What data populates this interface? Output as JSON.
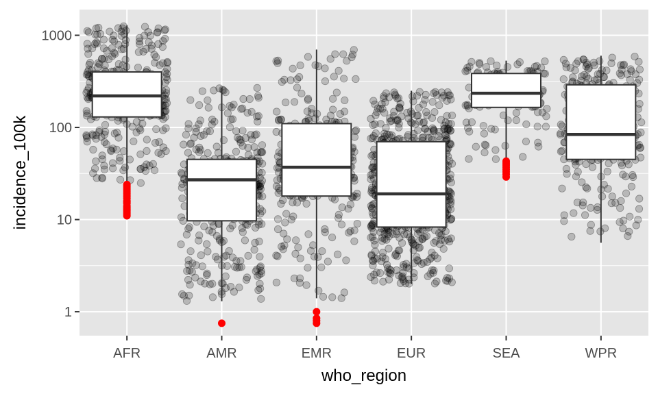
{
  "chart_data": {
    "type": "box",
    "xlabel": "who_region",
    "ylabel": "incidence_100k",
    "y_scale": "log10",
    "ylim": [
      0.55,
      1900
    ],
    "y_ticks": [
      1,
      10,
      100,
      1000
    ],
    "y_tick_labels": [
      "1",
      "10",
      "100",
      "1000"
    ],
    "categories": [
      "AFR",
      "AMR",
      "EMR",
      "EUR",
      "SEA",
      "WPR"
    ],
    "boxes": [
      {
        "category": "AFR",
        "q1": 130,
        "median": 220,
        "q3": 400,
        "whisker_low": 24,
        "whisker_high": 1280
      },
      {
        "category": "AMR",
        "q1": 9.7,
        "median": 27,
        "q3": 45,
        "whisker_low": 1.3,
        "whisker_high": 270
      },
      {
        "category": "EMR",
        "q1": 18,
        "median": 37,
        "q3": 110,
        "whisker_low": 1.4,
        "whisker_high": 700
      },
      {
        "category": "EUR",
        "q1": 8.3,
        "median": 19,
        "q3": 70,
        "whisker_low": 2.0,
        "whisker_high": 250
      },
      {
        "category": "SEA",
        "q1": 165,
        "median": 235,
        "q3": 385,
        "whisker_low": 45,
        "whisker_high": 530
      },
      {
        "category": "WPR",
        "q1": 45,
        "median": 84,
        "q3": 290,
        "whisker_low": 5.6,
        "whisker_high": 600
      }
    ],
    "outliers": [
      {
        "category": "AFR",
        "values": [
          11,
          11.5,
          12,
          12.5,
          13,
          13.5,
          14,
          15,
          15.5,
          16,
          17,
          18,
          19,
          20,
          21,
          22,
          23,
          24
        ]
      },
      {
        "category": "AMR",
        "values": [
          0.75
        ]
      },
      {
        "category": "EMR",
        "values": [
          0.75,
          0.8,
          0.85,
          1.0
        ]
      },
      {
        "category": "EUR",
        "values": []
      },
      {
        "category": "SEA",
        "values": [
          29,
          31,
          33,
          35,
          37,
          39,
          41,
          43
        ]
      },
      {
        "category": "WPR",
        "values": []
      }
    ],
    "jitter_points_per_category": [
      420,
      420,
      300,
      700,
      150,
      300
    ],
    "outlier_color": "#ff0000",
    "jitter_color": "#000000",
    "jitter_opacity": 0.2,
    "panel_background": "#e5e5e5",
    "grid_color": "#ffffff",
    "grid": true,
    "legend": "none"
  }
}
